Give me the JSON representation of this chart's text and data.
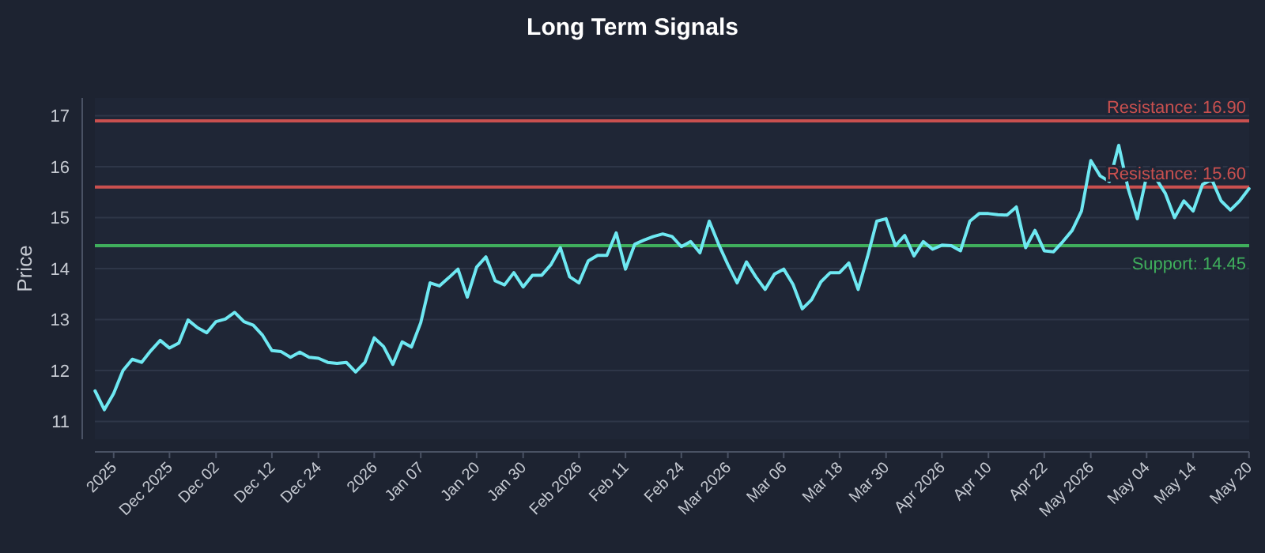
{
  "chart_data": {
    "type": "line",
    "title": "Long Term Signals",
    "ylabel": "Price",
    "categories": [
      null,
      null,
      "2025",
      null,
      null,
      null,
      null,
      null,
      "Dec 2025",
      null,
      null,
      null,
      null,
      "Dec 02",
      null,
      null,
      null,
      null,
      null,
      "Dec 12",
      null,
      null,
      null,
      null,
      "Dec 24",
      null,
      null,
      null,
      null,
      null,
      "2026",
      null,
      null,
      null,
      null,
      "Jan 07",
      null,
      null,
      null,
      null,
      null,
      "Jan 20",
      null,
      null,
      null,
      null,
      "Jan 30",
      null,
      null,
      null,
      null,
      null,
      "Feb 2026",
      null,
      null,
      null,
      null,
      "Feb 11",
      null,
      null,
      null,
      null,
      null,
      "Feb 24",
      null,
      null,
      null,
      null,
      "Mar 2026",
      null,
      null,
      null,
      null,
      null,
      "Mar 06",
      null,
      null,
      null,
      null,
      null,
      "Mar 18",
      null,
      null,
      null,
      null,
      "Mar 30",
      null,
      null,
      null,
      null,
      null,
      "Apr 2026",
      null,
      null,
      null,
      null,
      "Apr 10",
      null,
      null,
      null,
      null,
      null,
      "Apr 22",
      null,
      null,
      null,
      null,
      "May 2026",
      null,
      null,
      null,
      null,
      null,
      "May 04",
      null,
      null,
      null,
      null,
      "May 14",
      null,
      null,
      null,
      null,
      null,
      "May 20"
    ],
    "series": [
      {
        "color": "#6ee8f2",
        "values": [
          11.6,
          11.23,
          11.55,
          12.0,
          12.22,
          12.16,
          12.39,
          12.59,
          12.44,
          12.54,
          12.99,
          12.84,
          12.74,
          12.96,
          13.01,
          13.14,
          12.96,
          12.89,
          12.69,
          12.39,
          12.37,
          12.26,
          12.36,
          12.26,
          12.24,
          12.16,
          12.14,
          12.16,
          11.97,
          12.16,
          12.64,
          12.47,
          12.12,
          12.56,
          12.46,
          12.94,
          13.72,
          13.66,
          13.82,
          13.99,
          13.44,
          14.03,
          14.23,
          13.76,
          13.68,
          13.92,
          13.64,
          13.87,
          13.87,
          14.08,
          14.41,
          13.84,
          13.72,
          14.15,
          14.26,
          14.26,
          14.7,
          13.99,
          14.48,
          14.56,
          14.63,
          14.68,
          14.63,
          14.43,
          14.53,
          14.31,
          14.93,
          14.48,
          14.08,
          13.72,
          14.13,
          13.84,
          13.59,
          13.89,
          13.99,
          13.69,
          13.21,
          13.39,
          13.74,
          13.92,
          13.92,
          14.11,
          13.59,
          14.23,
          14.93,
          14.98,
          14.45,
          14.65,
          14.25,
          14.53,
          14.38,
          14.46,
          14.45,
          14.35,
          14.93,
          15.08,
          15.08,
          15.06,
          15.05,
          15.21,
          14.41,
          14.75,
          14.35,
          14.33,
          14.53,
          14.75,
          15.13,
          16.12,
          15.82,
          15.71,
          16.42,
          15.58,
          14.98,
          15.82,
          15.77,
          15.48,
          15.0,
          15.33,
          15.13,
          15.65,
          15.75,
          15.33,
          15.15,
          15.33,
          15.57
        ]
      }
    ],
    "ylim": [
      10.65,
      17.35
    ],
    "yticks": [
      11,
      12,
      13,
      14,
      15,
      16,
      17
    ],
    "grid": "y",
    "marker": "none",
    "line_style": "solid",
    "ref_lines": [
      {
        "axis": "y",
        "value": 16.9,
        "label": "Resistance: 16.90",
        "color": "#c9504f"
      },
      {
        "axis": "y",
        "value": 15.6,
        "label": "Resistance: 15.60",
        "color": "#c9504f"
      },
      {
        "axis": "y",
        "value": 14.45,
        "label": "Support: 14.45",
        "color": "#3fae5c"
      }
    ]
  }
}
